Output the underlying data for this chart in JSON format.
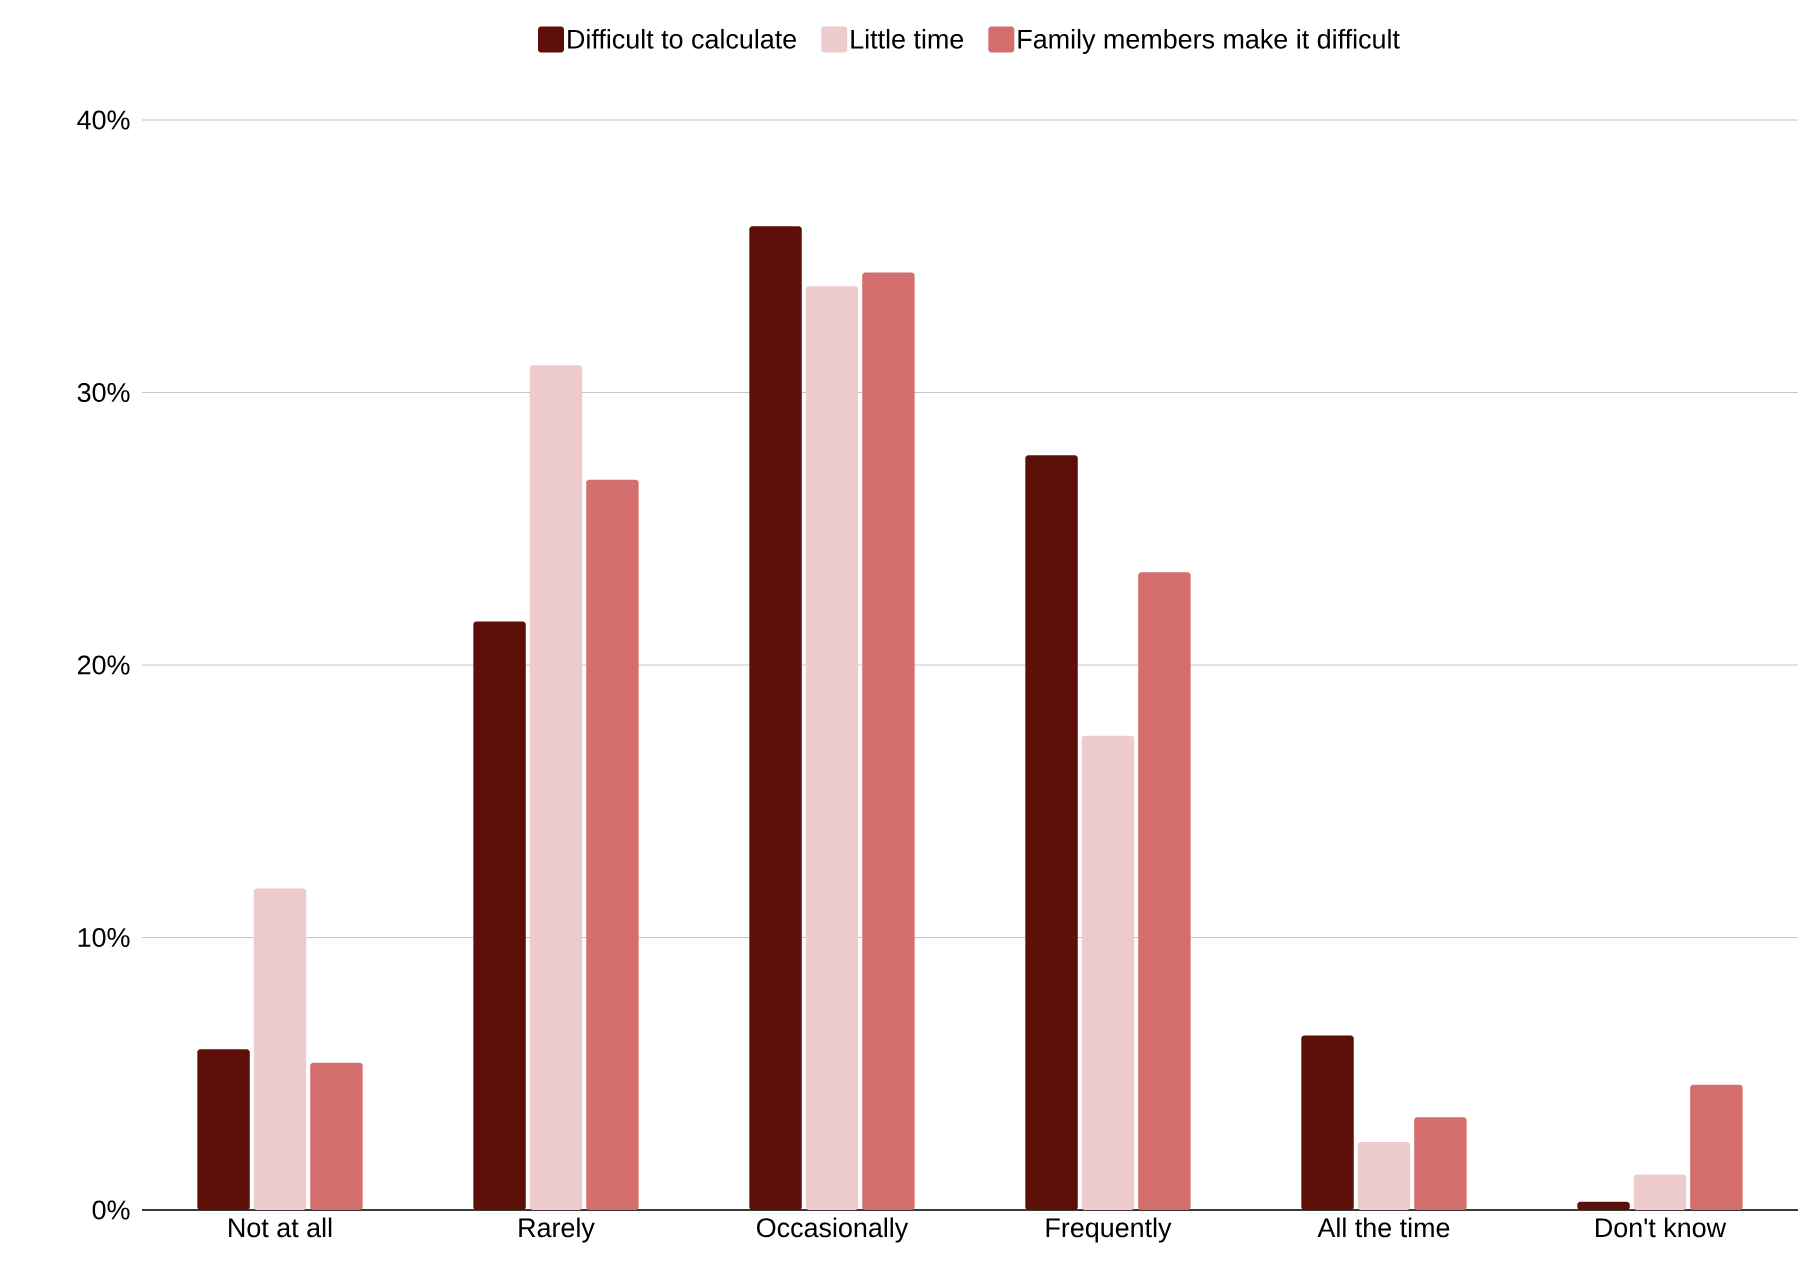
{
  "chart_data": {
    "type": "bar",
    "categories": [
      "Not at all",
      "Rarely",
      "Occasionally",
      "Frequently",
      "All the time",
      "Don't know"
    ],
    "series": [
      {
        "name": "Difficult to calculate",
        "color": "#5c1008",
        "values": [
          5.9,
          21.6,
          36.1,
          27.7,
          6.4,
          0.3
        ]
      },
      {
        "name": "Little time",
        "color": "#eecccc",
        "values": [
          11.8,
          31.0,
          33.9,
          17.4,
          2.5,
          1.3
        ]
      },
      {
        "name": "Family members make it difficult",
        "color": "#d46e6c",
        "values": [
          5.4,
          26.8,
          34.4,
          23.4,
          3.4,
          4.6
        ]
      }
    ],
    "ylim": [
      0,
      40
    ],
    "yticks": [
      {
        "value": 0,
        "label": "0%"
      },
      {
        "value": 10,
        "label": "10%"
      },
      {
        "value": 20,
        "label": "20%"
      },
      {
        "value": 30,
        "label": "30%"
      },
      {
        "value": 40,
        "label": "40%"
      }
    ],
    "grid": "y",
    "legend": "top"
  }
}
